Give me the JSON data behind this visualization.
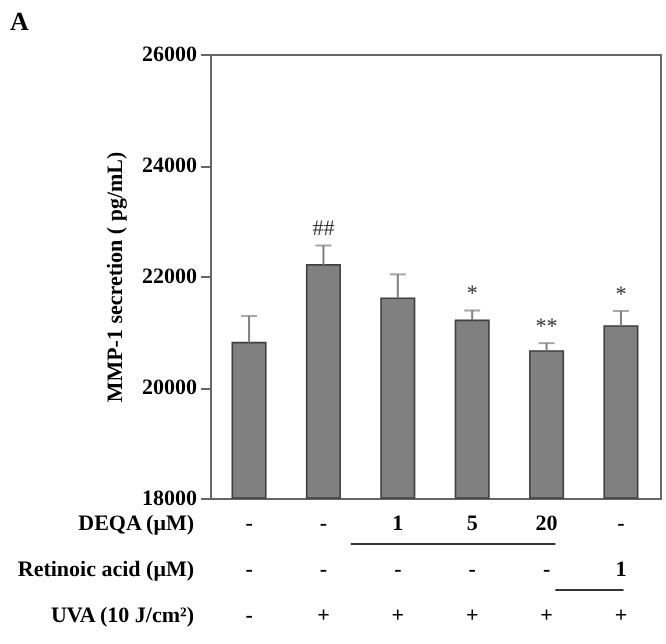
{
  "chart_data": {
    "type": "bar",
    "ylabel": "MMP-1 secretion ( pg/mL)",
    "categories": [
      null,
      null,
      null,
      null,
      null,
      null
    ],
    "values": [
      20800,
      22200,
      21600,
      21200,
      20650,
      21100
    ],
    "errors": [
      480,
      350,
      430,
      180,
      140,
      270
    ],
    "value_labels": [
      null,
      "##",
      null,
      "*",
      "**",
      "*"
    ],
    "color": "#808080",
    "ylim": [
      18000,
      26000
    ],
    "yticks": [
      18000,
      20000,
      22000,
      24000,
      26000
    ],
    "grid": false,
    "annotations": [
      "A",
      "DEQA  (μM)",
      "-",
      "-",
      "1",
      "5",
      "20",
      "-",
      "Retinoic acid (μM)",
      "-",
      "-",
      "-",
      "-",
      "-",
      "1",
      "UVA (10 J/cm²)",
      "-",
      "+",
      "+",
      "+",
      "+",
      "+"
    ]
  }
}
